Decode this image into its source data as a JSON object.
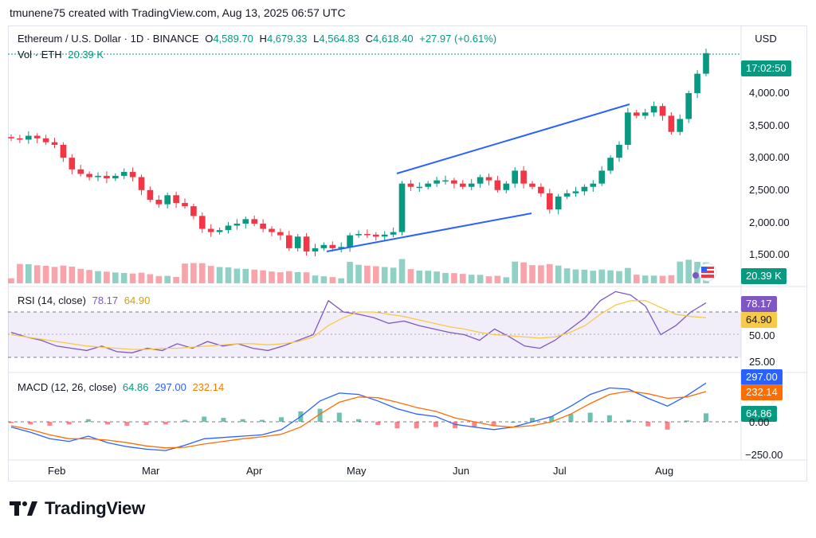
{
  "header": {
    "caption": "tmunene75 created with TradingView.com, Aug 13, 2025 06:57 UTC"
  },
  "legend": {
    "symbol": "Ethereum / U.S. Dollar · 1D · BINANCE",
    "open_label": "O",
    "open": "4,589.70",
    "high_label": "H",
    "high": "4,679.33",
    "low_label": "L",
    "low": "4,564.83",
    "close_label": "C",
    "close": "4,618.40",
    "change": "+27.97 (+0.61%)",
    "vol_label": "Vol · ETH",
    "vol": "20.39 K"
  },
  "currency_button": "USD",
  "price_axis": {
    "ticks": [
      "4,000.00",
      "3,500.00",
      "3,000.00",
      "2,500.00",
      "2,000.00",
      "1,500.00"
    ],
    "last_price_countdown": "17:02:50",
    "volume_tag": "20.39 K"
  },
  "rsi": {
    "label": "RSI (14, close)",
    "value": "78.17",
    "ma": "64.90",
    "ticks": [
      "50.00",
      "25.00"
    ],
    "tag_value": "78.17",
    "tag_ma": "64.90"
  },
  "macd": {
    "label": "MACD (12, 26, close)",
    "hist": "64.86",
    "macd": "297.00",
    "signal": "232.14",
    "ticks": [
      "0.00",
      "−250.00"
    ],
    "tag_macd": "297.00",
    "tag_signal": "232.14",
    "tag_hist": "64.86"
  },
  "time_axis": [
    "Feb",
    "Mar",
    "Apr",
    "May",
    "Jun",
    "Jul",
    "Aug"
  ],
  "branding": {
    "logo_text": "TradingView"
  },
  "colors": {
    "up": "#089981",
    "down": "#f23645",
    "trendline": "#2962ff",
    "rsi": "#7e57c2",
    "rsi_ma": "#f7c948",
    "macd": "#2962ff",
    "signal": "#ff6d00"
  },
  "chart_data": [
    {
      "type": "candlestick",
      "title": "Ethereum / U.S. Dollar · 1D · BINANCE",
      "series": [
        {
          "name": "ETHUSD",
          "close_approx": [
            3300,
            3280,
            3340,
            3300,
            3240,
            3200,
            3000,
            2820,
            2750,
            2700,
            2720,
            2680,
            2720,
            2780,
            2700,
            2500,
            2350,
            2280,
            2420,
            2300,
            2250,
            2100,
            1900,
            1850,
            1880,
            1950,
            1980,
            2050,
            1980,
            1900,
            1850,
            1800,
            1600,
            1780,
            1550,
            1600,
            1650,
            1600,
            1620,
            1800,
            1820,
            1810,
            1780,
            1810,
            1850,
            2600,
            2550,
            2550,
            2600,
            2650,
            2650,
            2600,
            2550,
            2600,
            2700,
            2650,
            2500,
            2600,
            2800,
            2600,
            2550,
            2450,
            2200,
            2400,
            2450,
            2480,
            2550,
            2600,
            2800,
            3000,
            3200,
            3700,
            3650,
            3700,
            3800,
            3650,
            3400,
            3600,
            4000,
            4300,
            4618
          ]
        }
      ],
      "ylim": [
        1200,
        4800
      ],
      "categories": [
        "Feb",
        "Mar",
        "Apr",
        "May",
        "Jun",
        "Jul",
        "Aug"
      ]
    },
    {
      "type": "line",
      "title": "RSI (14, close)",
      "series": [
        {
          "name": "RSI",
          "values": [
            52,
            48,
            45,
            40,
            38,
            36,
            40,
            35,
            34,
            38,
            36,
            42,
            38,
            44,
            40,
            42,
            38,
            36,
            40,
            45,
            50,
            80,
            70,
            68,
            65,
            60,
            62,
            58,
            55,
            52,
            50,
            45,
            55,
            48,
            40,
            38,
            45,
            55,
            65,
            80,
            88,
            85,
            75,
            50,
            58,
            70,
            78
          ]
        },
        {
          "name": "RSI MA",
          "values": [
            50,
            48,
            46,
            44,
            42,
            40,
            39,
            38,
            37,
            37,
            38,
            38,
            39,
            40,
            41,
            42,
            42,
            41,
            42,
            44,
            48,
            58,
            65,
            70,
            70,
            68,
            66,
            63,
            60,
            57,
            55,
            52,
            50,
            49,
            48,
            47,
            48,
            52,
            58,
            68,
            76,
            80,
            80,
            74,
            68,
            66,
            65
          ]
        }
      ],
      "ylim": [
        0,
        100
      ]
    },
    {
      "type": "line",
      "title": "MACD (12, 26, close)",
      "series": [
        {
          "name": "MACD",
          "values": [
            -40,
            -80,
            -130,
            -150,
            -110,
            -160,
            -190,
            -210,
            -220,
            -180,
            -130,
            -120,
            -110,
            -100,
            -60,
            40,
            160,
            220,
            210,
            160,
            100,
            60,
            40,
            -20,
            -40,
            -60,
            -40,
            0,
            40,
            120,
            210,
            260,
            250,
            180,
            120,
            200,
            297
          ]
        },
        {
          "name": "Signal",
          "values": [
            -30,
            -60,
            -100,
            -130,
            -130,
            -140,
            -160,
            -185,
            -200,
            -195,
            -170,
            -150,
            -130,
            -115,
            -95,
            -40,
            60,
            150,
            190,
            185,
            150,
            110,
            80,
            30,
            0,
            -30,
            -40,
            -30,
            0,
            60,
            140,
            210,
            235,
            215,
            180,
            190,
            232
          ]
        }
      ],
      "ylim": [
        -250,
        300
      ]
    }
  ]
}
